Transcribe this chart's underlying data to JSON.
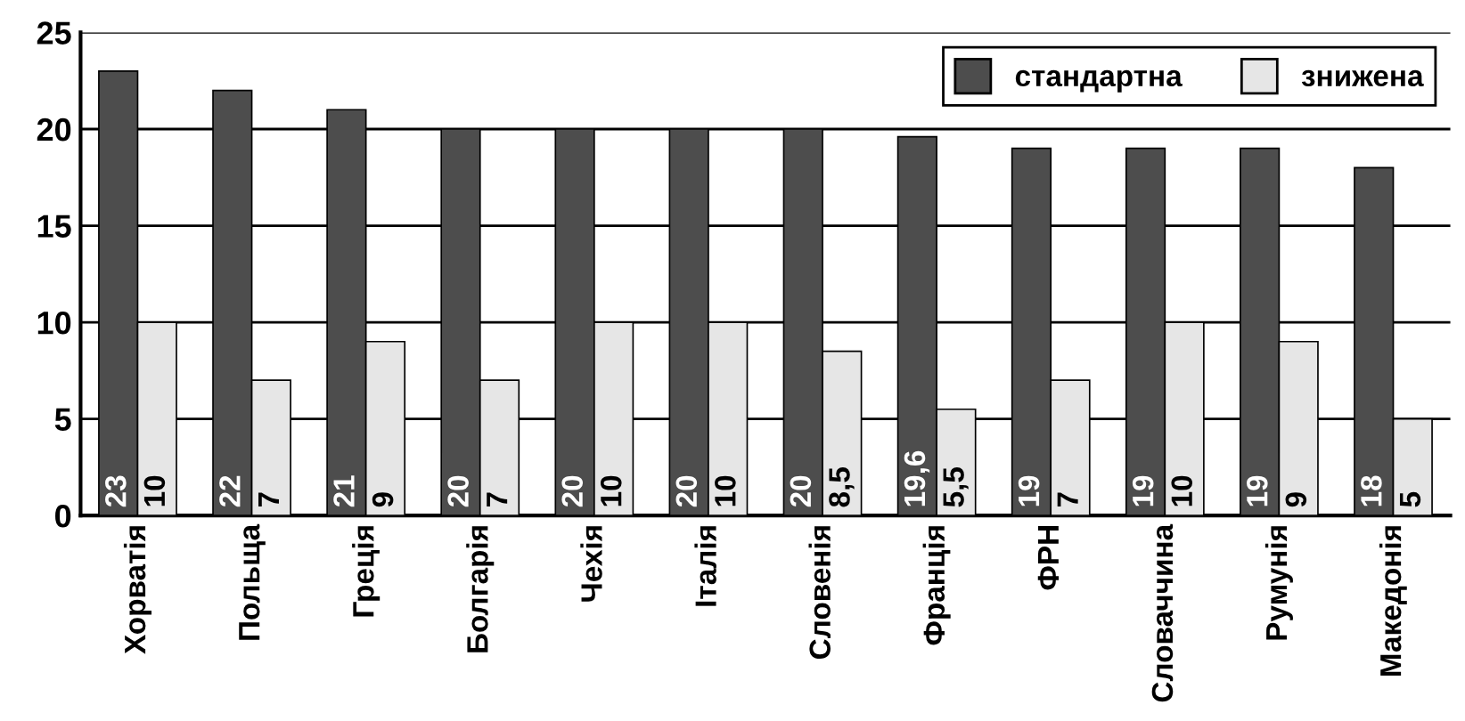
{
  "chart_data": {
    "type": "bar",
    "categories": [
      "Хорватія",
      "Польща",
      "Греція",
      "Болгарія",
      "Чехія",
      "Італія",
      "Словенія",
      "Франція",
      "ФРН",
      "Словаччина",
      "Румунія",
      "Македонія"
    ],
    "series": [
      {
        "name": "стандартна",
        "color": "#4d4d4d",
        "values": [
          23,
          22,
          21,
          20,
          20,
          20,
          20,
          19.6,
          19,
          19,
          19,
          18
        ],
        "value_labels": [
          "23",
          "22",
          "21",
          "20",
          "20",
          "20",
          "20",
          "19,6",
          "19",
          "19",
          "19",
          "18"
        ]
      },
      {
        "name": "знижена",
        "color": "#e6e6e6",
        "values": [
          10,
          7,
          9,
          7,
          10,
          10,
          8.5,
          5.5,
          7,
          10,
          9,
          5
        ],
        "value_labels": [
          "10",
          "7",
          "9",
          "7",
          "10",
          "10",
          "8,5",
          "5,5",
          "7",
          "10",
          "9",
          "5"
        ]
      }
    ],
    "ylim": [
      0,
      25
    ],
    "yticks": [
      0,
      5,
      10,
      15,
      20,
      25
    ],
    "grid": "y",
    "legend": "top right"
  }
}
